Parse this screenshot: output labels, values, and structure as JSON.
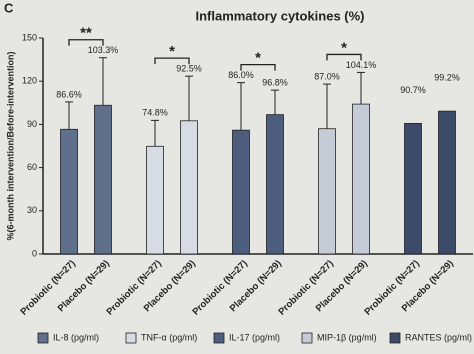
{
  "chart_data": {
    "type": "bar",
    "panel": "C",
    "title": "Inflammatory cytokines (%)",
    "y_label": "%(6-month intervention/Before-intervention)",
    "categories": [
      "Probiotic (N=27)",
      "Placebo (N=29)"
    ],
    "series": [
      {
        "name": "IL-8 (pg/ml)",
        "color": "#5f6f8c",
        "values": [
          86.6,
          103.3
        ],
        "value_labels": [
          "86.6%",
          "103.3%"
        ],
        "errors": [
          19,
          33
        ],
        "significance": "**"
      },
      {
        "name": "TNF-α (pg/ml)",
        "color": "#d6dbe4",
        "values": [
          74.8,
          92.5
        ],
        "value_labels": [
          "74.8%",
          "92.5%"
        ],
        "errors": [
          18,
          31
        ],
        "significance": "*"
      },
      {
        "name": "IL-17 (pg/ml)",
        "color": "#4c5d7e",
        "values": [
          86.0,
          96.8
        ],
        "value_labels": [
          "86.0%",
          "96.8%"
        ],
        "errors": [
          33,
          17
        ],
        "significance": "*"
      },
      {
        "name": "MIP-1β (pg/ml)",
        "color": "#c5ccd8",
        "values": [
          87.0,
          104.1
        ],
        "value_labels": [
          "87.0%",
          "104.1%"
        ],
        "errors": [
          31,
          22
        ],
        "significance": "*"
      },
      {
        "name": "RANTES (pg/ml)",
        "color": "#3d4b6a",
        "values": [
          90.7,
          99.2
        ],
        "value_labels": [
          "90.7%",
          "99.2%"
        ],
        "errors": [
          null,
          null
        ]
      }
    ],
    "ylim": [
      0,
      150
    ],
    "yticks": [
      0,
      30,
      60,
      90,
      120,
      150
    ]
  }
}
